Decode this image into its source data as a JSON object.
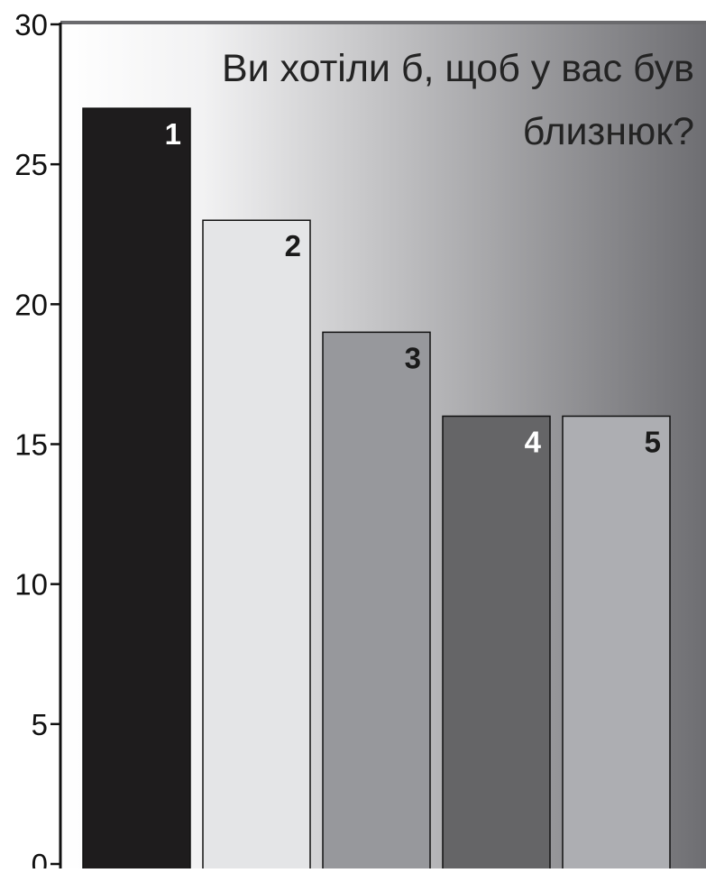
{
  "chart_data": {
    "type": "bar",
    "title": "Ви хотіли б, щоб у вас був близнюк?",
    "title_lines": [
      "Ви хотіли б, щоб у вас був",
      "близнюк?"
    ],
    "xlabel": "",
    "ylabel": "",
    "categories": [
      "1",
      "2",
      "3",
      "4",
      "5"
    ],
    "values": [
      27,
      23,
      19,
      16,
      16
    ],
    "ylim": [
      0,
      30
    ],
    "yticks": [
      0,
      5,
      10,
      15,
      20,
      25,
      30
    ],
    "ytick_labels": [
      "0",
      "5",
      "10",
      "15",
      "20",
      "25",
      "30"
    ],
    "grid": false,
    "legend": "none",
    "bar_colors": [
      "#1e1c1d",
      "#e4e5e7",
      "#97989c",
      "#656567",
      "#adaeb2"
    ],
    "bar_label_colors": [
      "#ffffff",
      "#1a1a1a",
      "#1a1a1a",
      "#ffffff",
      "#1a1a1a"
    ],
    "background_gradient": [
      "#ffffff",
      "#6e6e72"
    ]
  }
}
